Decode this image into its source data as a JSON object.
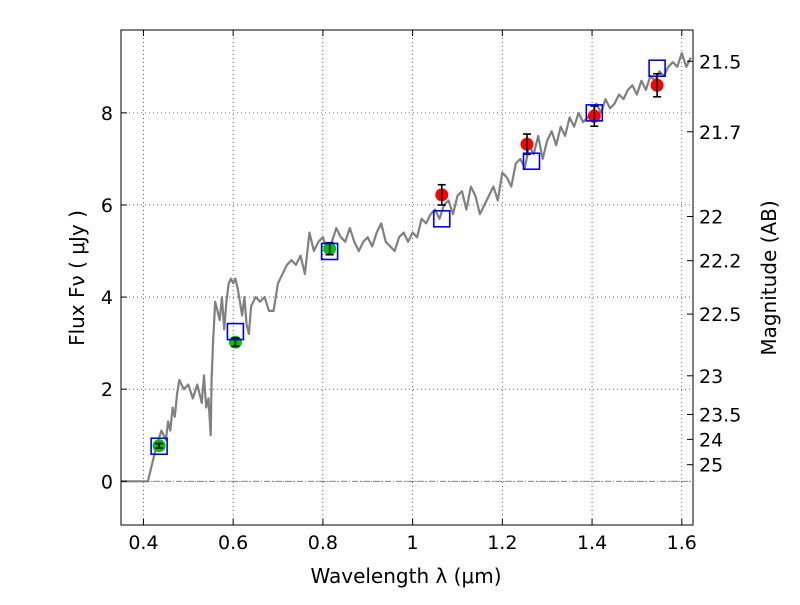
{
  "chart_data": {
    "type": "scatter",
    "xlabel": "Wavelength  λ (μm)",
    "ylabel": "Flux  Fν  ( μJy )",
    "ylabel2": "Magnitude (AB)",
    "xlim": [
      0.35,
      1.625
    ],
    "ylim": [
      -0.95,
      9.8
    ],
    "grid": true,
    "x_ticks": [
      {
        "v": 0.4,
        "label": "0.4"
      },
      {
        "v": 0.6,
        "label": "0.6"
      },
      {
        "v": 0.8,
        "label": "0.8"
      },
      {
        "v": 1.0,
        "label": "1"
      },
      {
        "v": 1.2,
        "label": "1.2"
      },
      {
        "v": 1.4,
        "label": "1.4"
      },
      {
        "v": 1.6,
        "label": "1.6"
      }
    ],
    "y_ticks": [
      {
        "v": 0,
        "label": "0"
      },
      {
        "v": 2,
        "label": "2"
      },
      {
        "v": 4,
        "label": "4"
      },
      {
        "v": 6,
        "label": "6"
      },
      {
        "v": 8,
        "label": "8"
      }
    ],
    "mag_ticks": [
      {
        "flux": 9.12,
        "label": "21.5"
      },
      {
        "flux": 7.59,
        "label": "21.7"
      },
      {
        "flux": 5.75,
        "label": "22"
      },
      {
        "flux": 4.79,
        "label": "22.2"
      },
      {
        "flux": 3.63,
        "label": "22.5"
      },
      {
        "flux": 2.29,
        "label": "23"
      },
      {
        "flux": 1.45,
        "label": "23.5"
      },
      {
        "flux": 0.91,
        "label": "24"
      },
      {
        "flux": 0.36,
        "label": "25"
      }
    ],
    "model_spectrum": {
      "color": "#808080",
      "x": [
        0.35,
        0.41,
        0.42,
        0.43,
        0.44,
        0.45,
        0.455,
        0.46,
        0.465,
        0.47,
        0.475,
        0.48,
        0.49,
        0.5,
        0.51,
        0.52,
        0.53,
        0.535,
        0.54,
        0.545,
        0.55,
        0.552,
        0.555,
        0.56,
        0.565,
        0.57,
        0.575,
        0.58,
        0.585,
        0.59,
        0.595,
        0.6,
        0.605,
        0.61,
        0.615,
        0.62,
        0.625,
        0.63,
        0.635,
        0.64,
        0.645,
        0.65,
        0.66,
        0.67,
        0.68,
        0.69,
        0.7,
        0.71,
        0.72,
        0.73,
        0.74,
        0.75,
        0.76,
        0.77,
        0.78,
        0.79,
        0.8,
        0.81,
        0.82,
        0.83,
        0.84,
        0.85,
        0.86,
        0.87,
        0.88,
        0.89,
        0.9,
        0.91,
        0.92,
        0.93,
        0.94,
        0.95,
        0.96,
        0.97,
        0.98,
        0.99,
        1.0,
        1.01,
        1.02,
        1.03,
        1.04,
        1.05,
        1.06,
        1.07,
        1.08,
        1.09,
        1.1,
        1.11,
        1.12,
        1.13,
        1.14,
        1.15,
        1.16,
        1.17,
        1.18,
        1.19,
        1.2,
        1.21,
        1.22,
        1.23,
        1.24,
        1.25,
        1.26,
        1.27,
        1.28,
        1.29,
        1.3,
        1.31,
        1.32,
        1.33,
        1.34,
        1.35,
        1.36,
        1.37,
        1.38,
        1.39,
        1.4,
        1.41,
        1.42,
        1.43,
        1.44,
        1.45,
        1.46,
        1.47,
        1.48,
        1.49,
        1.5,
        1.51,
        1.52,
        1.53,
        1.54,
        1.55,
        1.56,
        1.57,
        1.58,
        1.59,
        1.6,
        1.61,
        1.62
      ],
      "y": [
        0.0,
        0.0,
        0.4,
        0.8,
        1.1,
        0.9,
        1.3,
        1.1,
        1.6,
        1.4,
        1.9,
        2.2,
        2.0,
        2.1,
        1.8,
        2.1,
        1.7,
        2.3,
        1.6,
        1.8,
        1.0,
        2.2,
        3.0,
        3.9,
        3.7,
        3.5,
        4.0,
        3.3,
        3.9,
        4.3,
        4.4,
        4.3,
        4.4,
        4.2,
        3.9,
        3.6,
        4.0,
        3.4,
        3.2,
        3.8,
        3.9,
        4.0,
        3.9,
        4.0,
        3.7,
        3.7,
        4.3,
        4.5,
        4.7,
        4.8,
        4.7,
        4.9,
        4.5,
        5.4,
        5.0,
        5.2,
        5.3,
        5.0,
        5.2,
        5.5,
        5.3,
        5.2,
        5.5,
        5.2,
        5.0,
        5.2,
        5.3,
        5.1,
        5.4,
        5.6,
        5.2,
        5.1,
        5.0,
        5.3,
        5.4,
        5.2,
        5.4,
        5.3,
        5.7,
        5.6,
        5.8,
        5.9,
        5.7,
        6.0,
        6.1,
        5.8,
        6.2,
        6.3,
        5.9,
        6.4,
        6.2,
        5.8,
        6.0,
        6.2,
        6.4,
        6.1,
        6.7,
        6.6,
        6.4,
        6.9,
        7.0,
        6.8,
        7.3,
        7.1,
        7.5,
        7.0,
        7.4,
        7.6,
        7.3,
        7.7,
        7.5,
        7.9,
        7.7,
        8.0,
        7.8,
        7.9,
        8.0,
        8.2,
        8.0,
        8.3,
        8.1,
        8.2,
        8.4,
        8.3,
        8.5,
        8.6,
        8.4,
        8.7,
        8.5,
        8.8,
        8.7,
        8.9,
        8.8,
        9.0,
        9.1,
        9.0,
        9.3,
        9.0,
        9.2
      ]
    },
    "series": [
      {
        "marker": "circle",
        "color": "#00c000",
        "points": [
          {
            "x": 0.435,
            "y": 0.77,
            "err": 0.05
          },
          {
            "x": 0.605,
            "y": 3.02,
            "err": 0.09
          },
          {
            "x": 0.815,
            "y": 5.05,
            "err": 0.13
          }
        ]
      },
      {
        "marker": "circle",
        "color": "#ff0000",
        "points": [
          {
            "x": 1.065,
            "y": 6.22,
            "err": 0.22
          },
          {
            "x": 1.255,
            "y": 7.32,
            "err": 0.22
          },
          {
            "x": 1.405,
            "y": 7.93,
            "err": 0.22
          },
          {
            "x": 1.545,
            "y": 8.6,
            "err": 0.25
          }
        ]
      },
      {
        "marker": "square",
        "color": "#0000ff",
        "points": [
          {
            "x": 0.435,
            "y": 0.76
          },
          {
            "x": 0.605,
            "y": 3.25
          },
          {
            "x": 0.815,
            "y": 4.99
          },
          {
            "x": 1.065,
            "y": 5.7
          },
          {
            "x": 1.265,
            "y": 6.95
          },
          {
            "x": 1.405,
            "y": 8.0
          },
          {
            "x": 1.545,
            "y": 8.97
          }
        ]
      }
    ]
  }
}
